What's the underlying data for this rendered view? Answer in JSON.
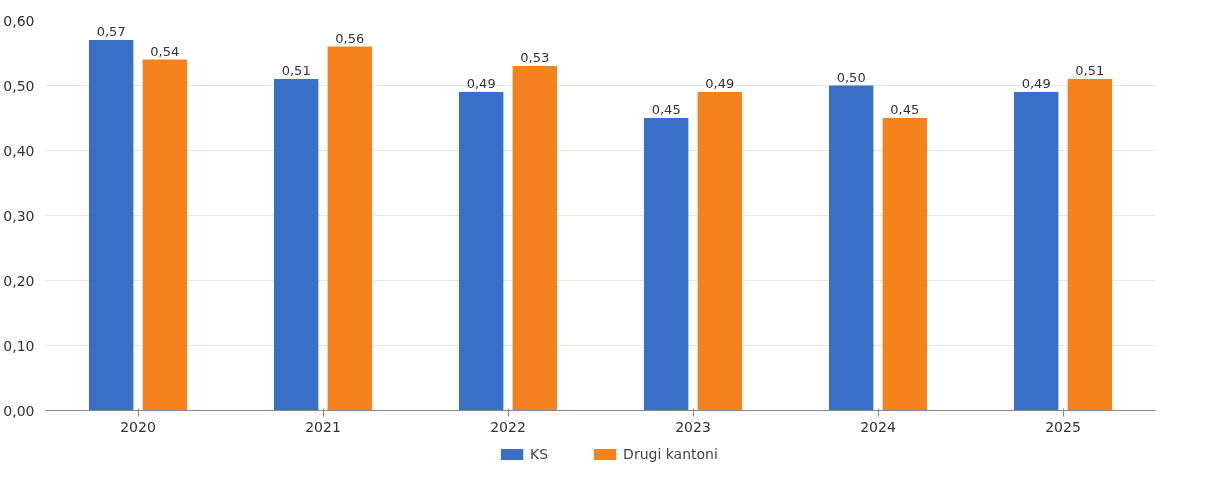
{
  "chart_data": {
    "type": "bar",
    "categories": [
      "2020",
      "2021",
      "2022",
      "2023",
      "2024",
      "2025"
    ],
    "series": [
      {
        "name": "KS",
        "color": "#3a6fc8",
        "values": [
          0.57,
          0.51,
          0.49,
          0.45,
          0.5,
          0.49
        ],
        "value_labels": [
          "0,57",
          "0,51",
          "0,49",
          "0,45",
          "0,50",
          "0,49"
        ]
      },
      {
        "name": "Drugi kantoni",
        "color": "#f5821f",
        "values": [
          0.54,
          0.56,
          0.53,
          0.49,
          0.45,
          0.51
        ],
        "value_labels": [
          "0,54",
          "0,56",
          "0,53",
          "0,49",
          "0,45",
          "0,51"
        ]
      }
    ],
    "ylim": [
      0,
      0.6
    ],
    "yticks": [
      {
        "value": 0,
        "label": "0,00"
      },
      {
        "value": 0.1,
        "label": "0,10"
      },
      {
        "value": 0.2,
        "label": "0,20"
      },
      {
        "value": 0.3,
        "label": "0,30"
      },
      {
        "value": 0.4,
        "label": "0,40"
      },
      {
        "value": 0.5,
        "label": "0,50"
      },
      {
        "value": 0.6,
        "label": "0,60"
      }
    ],
    "grid": "y",
    "legend": "bottom"
  }
}
